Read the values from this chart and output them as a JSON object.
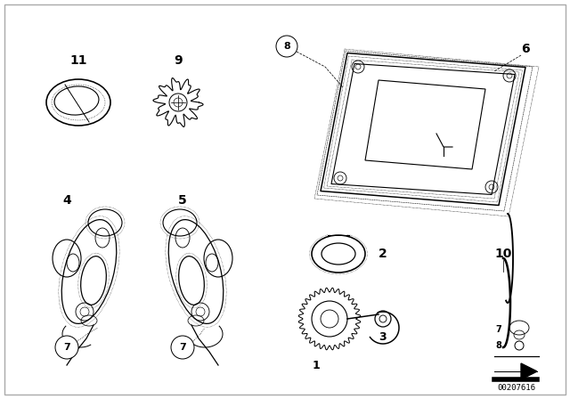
{
  "background_color": "#ffffff",
  "part_number_image": "00207616",
  "fig_width": 6.4,
  "fig_height": 4.48,
  "dpi": 100,
  "lw": 0.9
}
